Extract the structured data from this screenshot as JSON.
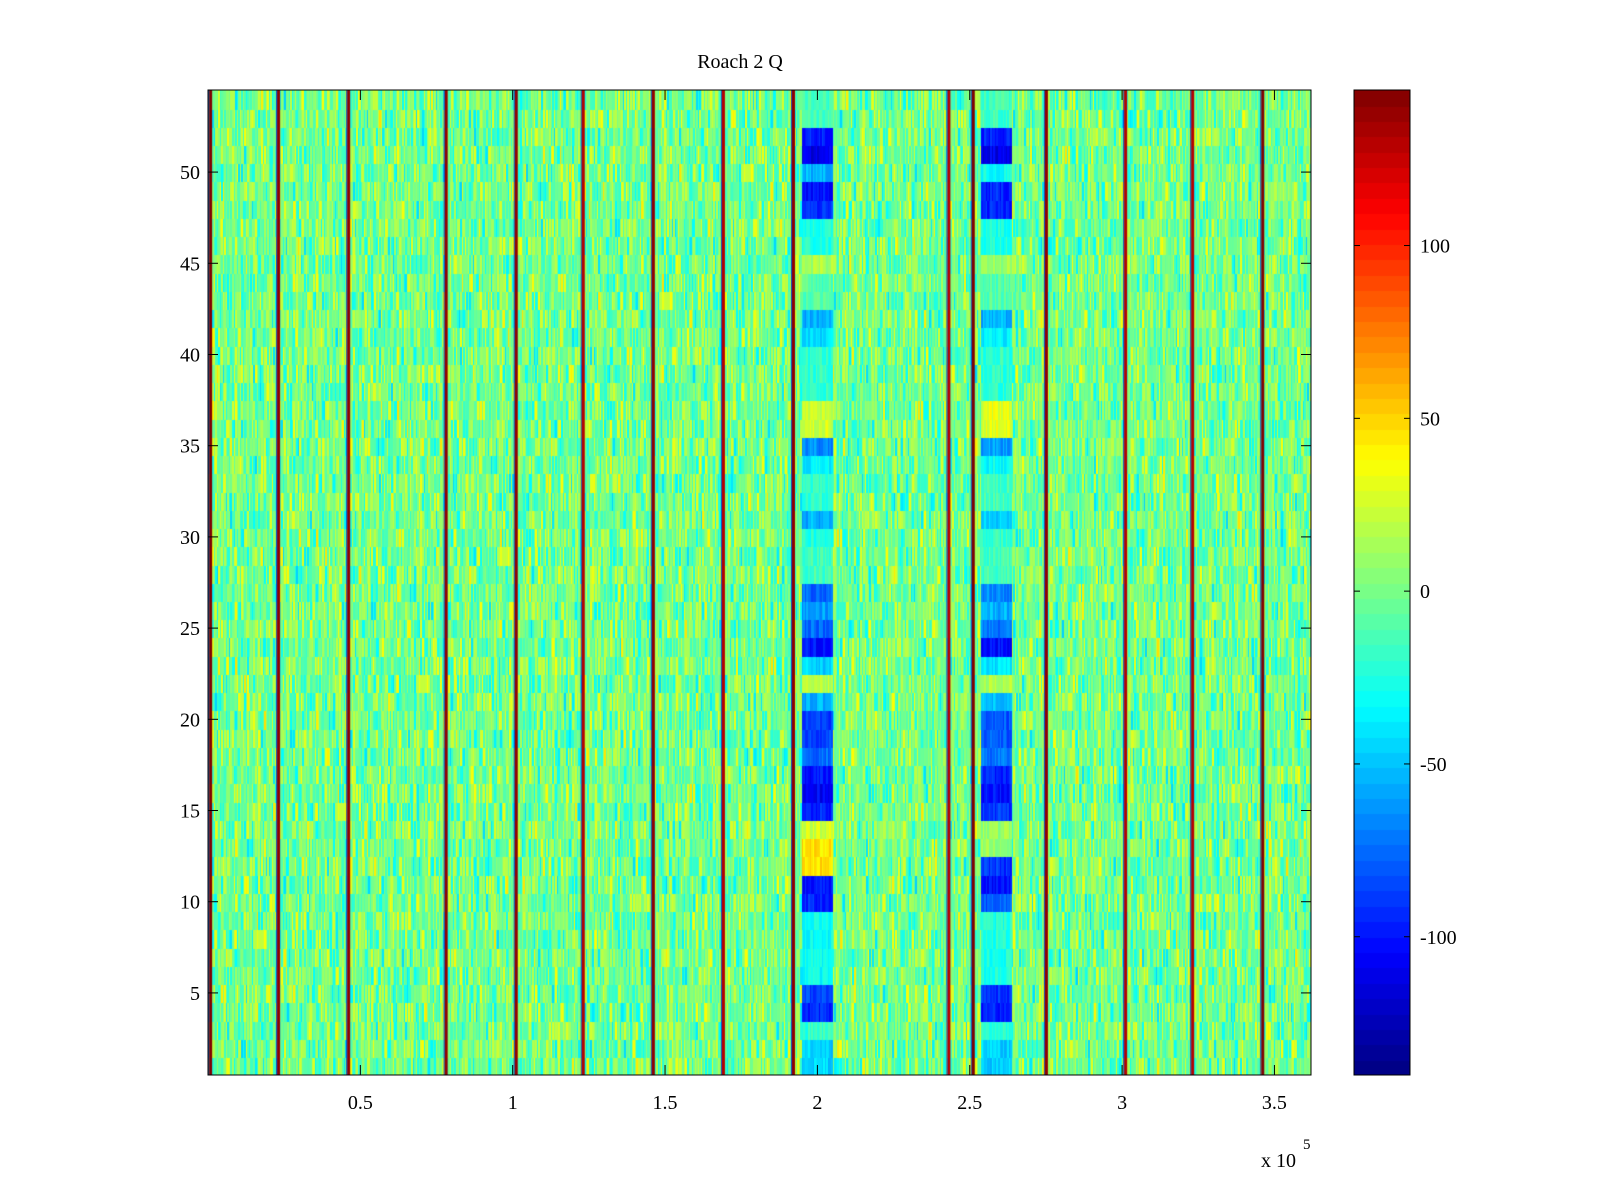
{
  "chart_data": {
    "type": "heatmap",
    "title": "Roach 2 Q",
    "xlabel": "",
    "ylabel": "",
    "x_multiplier_text": "x 10",
    "x_multiplier_exponent": "5",
    "xlim": [
      0,
      3.62
    ],
    "ylim": [
      0.5,
      54.5
    ],
    "xticks": [
      0.5,
      1,
      1.5,
      2,
      2.5,
      3,
      3.5
    ],
    "xtick_labels": [
      "0.5",
      "1",
      "1.5",
      "2",
      "2.5",
      "3",
      "3.5"
    ],
    "yticks": [
      5,
      10,
      15,
      20,
      25,
      30,
      35,
      40,
      45,
      50
    ],
    "ytick_labels": [
      "5",
      "10",
      "15",
      "20",
      "25",
      "30",
      "35",
      "40",
      "45",
      "50"
    ],
    "rows": 54,
    "colormap": "jet",
    "clim": [
      -140,
      145
    ],
    "colorbar": {
      "ticks": [
        -100,
        -50,
        0,
        50,
        100
      ],
      "tick_labels": [
        "-100",
        "-50",
        "0",
        "50",
        "100"
      ]
    },
    "background_value_range": [
      -35,
      35
    ],
    "vertical_stripes": [
      {
        "x": 0.007,
        "value": 145
      },
      {
        "x": 0.23,
        "value": 140
      },
      {
        "x": 0.46,
        "value": 140
      },
      {
        "x": 0.78,
        "value": 140
      },
      {
        "x": 1.01,
        "value": 140
      },
      {
        "x": 1.23,
        "value": 130
      },
      {
        "x": 1.46,
        "value": 140
      },
      {
        "x": 1.69,
        "value": 130
      },
      {
        "x": 1.92,
        "value": 140
      },
      {
        "x": 2.43,
        "value": 130
      },
      {
        "x": 2.51,
        "value": 145
      },
      {
        "x": 2.75,
        "value": 140
      },
      {
        "x": 3.01,
        "value": 130
      },
      {
        "x": 3.23,
        "value": 130
      },
      {
        "x": 3.46,
        "value": 145
      }
    ],
    "anomaly_bands": [
      {
        "x_range": [
          1.95,
          2.05
        ],
        "row_values": [
          {
            "rows": [
              1,
              2
            ],
            "value": -45
          },
          {
            "rows": [
              3,
              3
            ],
            "value": -20
          },
          {
            "rows": [
              4,
              4
            ],
            "value": -95
          },
          {
            "rows": [
              5,
              5
            ],
            "value": -85
          },
          {
            "rows": [
              6,
              9
            ],
            "value": -30
          },
          {
            "rows": [
              10,
              10
            ],
            "value": -95
          },
          {
            "rows": [
              11,
              11
            ],
            "value": -100
          },
          {
            "rows": [
              12,
              13
            ],
            "value": 45
          },
          {
            "rows": [
              14,
              14
            ],
            "value": 25
          },
          {
            "rows": [
              15,
              15
            ],
            "value": -95
          },
          {
            "rows": [
              16,
              16
            ],
            "value": -105
          },
          {
            "rows": [
              17,
              17
            ],
            "value": -100
          },
          {
            "rows": [
              18,
              18
            ],
            "value": -75
          },
          {
            "rows": [
              19,
              20
            ],
            "value": -85
          },
          {
            "rows": [
              21,
              21
            ],
            "value": -55
          },
          {
            "rows": [
              22,
              22
            ],
            "value": 20
          },
          {
            "rows": [
              23,
              23
            ],
            "value": -45
          },
          {
            "rows": [
              24,
              24
            ],
            "value": -100
          },
          {
            "rows": [
              25,
              25
            ],
            "value": -75
          },
          {
            "rows": [
              26,
              26
            ],
            "value": -60
          },
          {
            "rows": [
              27,
              27
            ],
            "value": -75
          },
          {
            "rows": [
              28,
              29
            ],
            "value": -15
          },
          {
            "rows": [
              30,
              30
            ],
            "value": -25
          },
          {
            "rows": [
              31,
              31
            ],
            "value": -55
          },
          {
            "rows": [
              32,
              33
            ],
            "value": -20
          },
          {
            "rows": [
              34,
              34
            ],
            "value": -35
          },
          {
            "rows": [
              35,
              35
            ],
            "value": -65
          },
          {
            "rows": [
              36,
              37
            ],
            "value": 25
          },
          {
            "rows": [
              38,
              40
            ],
            "value": -20
          },
          {
            "rows": [
              41,
              41
            ],
            "value": -40
          },
          {
            "rows": [
              42,
              42
            ],
            "value": -55
          },
          {
            "rows": [
              43,
              44
            ],
            "value": -10
          },
          {
            "rows": [
              45,
              45
            ],
            "value": 15
          },
          {
            "rows": [
              46,
              47
            ],
            "value": -25
          },
          {
            "rows": [
              48,
              48
            ],
            "value": -90
          },
          {
            "rows": [
              49,
              49
            ],
            "value": -100
          },
          {
            "rows": [
              50,
              50
            ],
            "value": -55
          },
          {
            "rows": [
              51,
              51
            ],
            "value": -110
          },
          {
            "rows": [
              52,
              52
            ],
            "value": -95
          },
          {
            "rows": [
              53,
              54
            ],
            "value": -15
          }
        ]
      },
      {
        "x_range": [
          2.54,
          2.64
        ],
        "row_values": [
          {
            "rows": [
              1,
              2
            ],
            "value": -45
          },
          {
            "rows": [
              3,
              3
            ],
            "value": -20
          },
          {
            "rows": [
              4,
              4
            ],
            "value": -95
          },
          {
            "rows": [
              5,
              5
            ],
            "value": -90
          },
          {
            "rows": [
              6,
              9
            ],
            "value": -25
          },
          {
            "rows": [
              10,
              10
            ],
            "value": -80
          },
          {
            "rows": [
              11,
              11
            ],
            "value": -100
          },
          {
            "rows": [
              12,
              12
            ],
            "value": -90
          },
          {
            "rows": [
              13,
              14
            ],
            "value": 10
          },
          {
            "rows": [
              15,
              15
            ],
            "value": -90
          },
          {
            "rows": [
              16,
              16
            ],
            "value": -100
          },
          {
            "rows": [
              17,
              17
            ],
            "value": -95
          },
          {
            "rows": [
              18,
              18
            ],
            "value": -70
          },
          {
            "rows": [
              19,
              20
            ],
            "value": -80
          },
          {
            "rows": [
              21,
              21
            ],
            "value": -50
          },
          {
            "rows": [
              22,
              22
            ],
            "value": 15
          },
          {
            "rows": [
              23,
              23
            ],
            "value": -40
          },
          {
            "rows": [
              24,
              24
            ],
            "value": -100
          },
          {
            "rows": [
              25,
              25
            ],
            "value": -70
          },
          {
            "rows": [
              26,
              26
            ],
            "value": -55
          },
          {
            "rows": [
              27,
              27
            ],
            "value": -65
          },
          {
            "rows": [
              28,
              29
            ],
            "value": -15
          },
          {
            "rows": [
              30,
              30
            ],
            "value": -20
          },
          {
            "rows": [
              31,
              31
            ],
            "value": -45
          },
          {
            "rows": [
              32,
              33
            ],
            "value": -15
          },
          {
            "rows": [
              34,
              34
            ],
            "value": -30
          },
          {
            "rows": [
              35,
              35
            ],
            "value": -60
          },
          {
            "rows": [
              36,
              37
            ],
            "value": 30
          },
          {
            "rows": [
              38,
              40
            ],
            "value": -20
          },
          {
            "rows": [
              41,
              41
            ],
            "value": -35
          },
          {
            "rows": [
              42,
              42
            ],
            "value": -55
          },
          {
            "rows": [
              43,
              44
            ],
            "value": -10
          },
          {
            "rows": [
              45,
              45
            ],
            "value": 10
          },
          {
            "rows": [
              46,
              47
            ],
            "value": -25
          },
          {
            "rows": [
              48,
              48
            ],
            "value": -95
          },
          {
            "rows": [
              49,
              49
            ],
            "value": -95
          },
          {
            "rows": [
              50,
              50
            ],
            "value": -30
          },
          {
            "rows": [
              51,
              51
            ],
            "value": -110
          },
          {
            "rows": [
              52,
              52
            ],
            "value": -95
          },
          {
            "rows": [
              53,
              54
            ],
            "value": -15
          }
        ]
      }
    ]
  }
}
